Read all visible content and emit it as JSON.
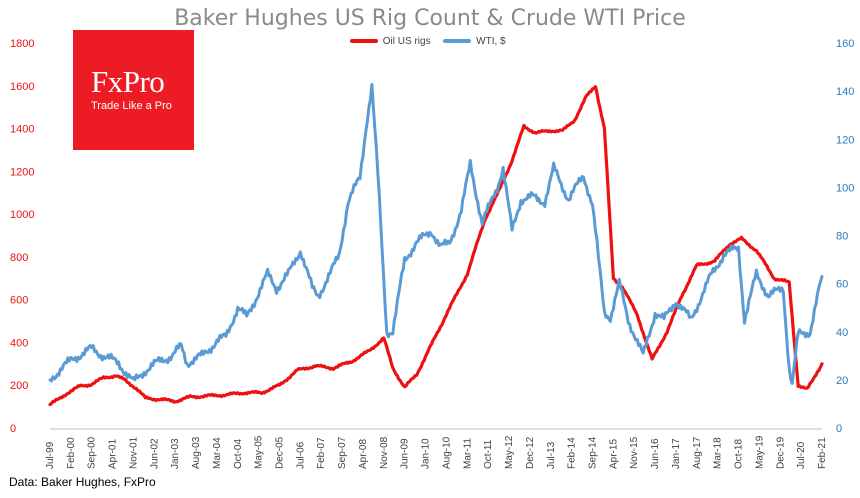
{
  "title": "Baker Hughes US Rig Count & Crude WTI Price",
  "source": "Data: Baker Hughes, FxPro",
  "logo": {
    "name": "FxPro",
    "tagline": "Trade Like a Pro",
    "color": "#ed1c24"
  },
  "chart_data": {
    "type": "line",
    "grid": false,
    "legend_position": "top-center",
    "x_tick_labels": [
      "Jul-99",
      "Feb-00",
      "Sep-00",
      "Apr-01",
      "Nov-01",
      "Jun-02",
      "Jan-03",
      "Aug-03",
      "Mar-04",
      "Oct-04",
      "May-05",
      "Dec-05",
      "Jul-06",
      "Feb-07",
      "Sep-07",
      "Apr-08",
      "Nov-08",
      "Jun-09",
      "Jan-10",
      "Aug-10",
      "Mar-11",
      "Oct-11",
      "May-12",
      "Dec-12",
      "Jul-13",
      "Feb-14",
      "Sep-14",
      "Apr-15",
      "Nov-15",
      "Jun-16",
      "Jan-17",
      "Aug-17",
      "Mar-18",
      "Oct-18",
      "May-19",
      "Dec-19",
      "Jul-20",
      "Feb-21"
    ],
    "y_left": {
      "range": [
        0,
        1800
      ],
      "ticks": [
        0,
        200,
        400,
        600,
        800,
        1000,
        1200,
        1400,
        1600,
        1800
      ],
      "color": "#ee1111"
    },
    "y_right": {
      "range": [
        0,
        160
      ],
      "ticks": [
        0,
        20,
        40,
        60,
        80,
        100,
        120,
        140,
        160
      ],
      "color": "#2a7bbd"
    },
    "series": [
      {
        "name": "Oil US rigs",
        "axis": "left",
        "color": "#ee1111",
        "points": [
          [
            "1999-07",
            110
          ],
          [
            "1999-10",
            135
          ],
          [
            "2000-01",
            165
          ],
          [
            "2000-05",
            195
          ],
          [
            "2000-09",
            205
          ],
          [
            "2001-01",
            235
          ],
          [
            "2001-05",
            245
          ],
          [
            "2001-08",
            225
          ],
          [
            "2001-12",
            185
          ],
          [
            "2002-03",
            140
          ],
          [
            "2002-09",
            132
          ],
          [
            "2003-01",
            125
          ],
          [
            "2003-06",
            145
          ],
          [
            "2003-12",
            150
          ],
          [
            "2004-06",
            155
          ],
          [
            "2004-12",
            165
          ],
          [
            "2005-06",
            165
          ],
          [
            "2005-12",
            200
          ],
          [
            "2006-06",
            270
          ],
          [
            "2006-12",
            290
          ],
          [
            "2007-06",
            280
          ],
          [
            "2007-12",
            310
          ],
          [
            "2008-06",
            360
          ],
          [
            "2008-11",
            420
          ],
          [
            "2009-02",
            280
          ],
          [
            "2009-06",
            190
          ],
          [
            "2009-10",
            250
          ],
          [
            "2010-03",
            390
          ],
          [
            "2010-09",
            560
          ],
          [
            "2011-03",
            720
          ],
          [
            "2011-09",
            980
          ],
          [
            "2012-01",
            1090
          ],
          [
            "2012-06",
            1250
          ],
          [
            "2012-10",
            1410
          ],
          [
            "2013-02",
            1380
          ],
          [
            "2013-07",
            1390
          ],
          [
            "2013-11",
            1390
          ],
          [
            "2014-03",
            1440
          ],
          [
            "2014-07",
            1550
          ],
          [
            "2014-10",
            1600
          ],
          [
            "2015-01",
            1400
          ],
          [
            "2015-04",
            700
          ],
          [
            "2015-07",
            660
          ],
          [
            "2015-12",
            530
          ],
          [
            "2016-05",
            320
          ],
          [
            "2016-10",
            450
          ],
          [
            "2017-03",
            620
          ],
          [
            "2017-08",
            760
          ],
          [
            "2018-02",
            780
          ],
          [
            "2018-07",
            860
          ],
          [
            "2018-11",
            885
          ],
          [
            "2019-04",
            830
          ],
          [
            "2019-10",
            700
          ],
          [
            "2020-03",
            680
          ],
          [
            "2020-06",
            200
          ],
          [
            "2020-09",
            180
          ],
          [
            "2021-02",
            300
          ]
        ]
      },
      {
        "name": "WTI, $",
        "axis": "right",
        "color": "#5b9bd5",
        "points": [
          [
            "1999-07",
            20
          ],
          [
            "1999-11",
            25
          ],
          [
            "2000-03",
            29
          ],
          [
            "2000-09",
            33
          ],
          [
            "2001-01",
            30
          ],
          [
            "2001-06",
            27
          ],
          [
            "2001-11",
            19
          ],
          [
            "2002-03",
            24
          ],
          [
            "2002-08",
            28
          ],
          [
            "2002-12",
            30
          ],
          [
            "2003-03",
            34
          ],
          [
            "2003-05",
            27
          ],
          [
            "2003-10",
            30
          ],
          [
            "2004-03",
            36
          ],
          [
            "2004-06",
            38
          ],
          [
            "2004-10",
            50
          ],
          [
            "2005-01",
            46
          ],
          [
            "2005-08",
            64
          ],
          [
            "2005-11",
            58
          ],
          [
            "2006-03",
            64
          ],
          [
            "2006-07",
            74
          ],
          [
            "2006-11",
            58
          ],
          [
            "2007-01",
            55
          ],
          [
            "2007-05",
            64
          ],
          [
            "2007-08",
            72
          ],
          [
            "2007-11",
            94
          ],
          [
            "2008-03",
            104
          ],
          [
            "2008-05",
            125
          ],
          [
            "2008-07",
            142
          ],
          [
            "2008-09",
            105
          ],
          [
            "2008-12",
            40
          ],
          [
            "2009-02",
            40
          ],
          [
            "2009-06",
            70
          ],
          [
            "2009-10",
            77
          ],
          [
            "2010-03",
            82
          ],
          [
            "2010-06",
            75
          ],
          [
            "2010-09",
            77
          ],
          [
            "2011-01",
            90
          ],
          [
            "2011-04",
            110
          ],
          [
            "2011-08",
            85
          ],
          [
            "2012-01",
            100
          ],
          [
            "2012-03",
            108
          ],
          [
            "2012-06",
            82
          ],
          [
            "2012-09",
            95
          ],
          [
            "2013-01",
            96
          ],
          [
            "2013-05",
            94
          ],
          [
            "2013-08",
            108
          ],
          [
            "2014-01",
            95
          ],
          [
            "2014-06",
            105
          ],
          [
            "2014-09",
            93
          ],
          [
            "2015-01",
            48
          ],
          [
            "2015-03",
            46
          ],
          [
            "2015-06",
            60
          ],
          [
            "2015-09",
            45
          ],
          [
            "2016-02",
            30
          ],
          [
            "2016-06",
            48
          ],
          [
            "2016-09",
            45
          ],
          [
            "2017-01",
            53
          ],
          [
            "2017-06",
            45
          ],
          [
            "2018-01",
            64
          ],
          [
            "2018-05",
            72
          ],
          [
            "2018-10",
            75
          ],
          [
            "2018-12",
            45
          ],
          [
            "2019-04",
            64
          ],
          [
            "2019-08",
            55
          ],
          [
            "2020-01",
            58
          ],
          [
            "2020-03",
            25
          ],
          [
            "2020-04",
            18
          ],
          [
            "2020-06",
            39
          ],
          [
            "2020-10",
            40
          ],
          [
            "2021-02",
            63
          ]
        ]
      }
    ]
  }
}
